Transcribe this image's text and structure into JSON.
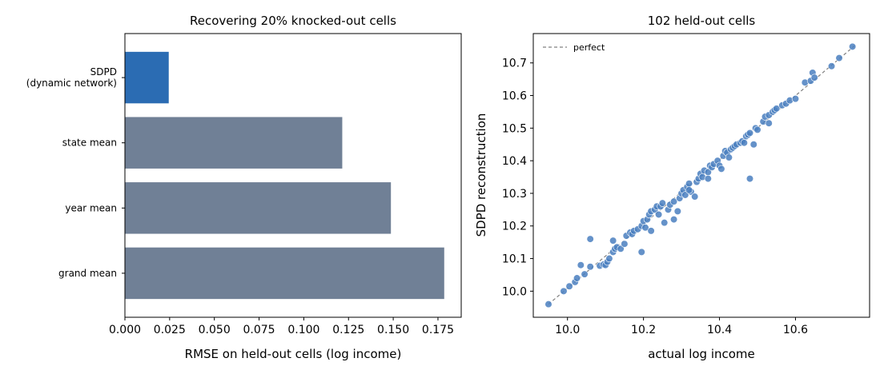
{
  "chart_data": [
    {
      "type": "bar",
      "orientation": "horizontal",
      "title": "Recovering 20% knocked-out cells",
      "xlabel": "RMSE on held-out cells (log income)",
      "ylabel": "",
      "xlim": [
        0,
        0.188
      ],
      "xticks": [
        "0.000",
        "0.025",
        "0.050",
        "0.075",
        "0.100",
        "0.125",
        "0.150",
        "0.175"
      ],
      "categories": [
        [
          "SDPD",
          "(dynamic network)"
        ],
        [
          "state mean"
        ],
        [
          "year mean"
        ],
        [
          "grand mean"
        ]
      ],
      "values": [
        0.0245,
        0.1215,
        0.1487,
        0.1785
      ],
      "colors": [
        "#2b6cb3",
        "#708096",
        "#708096",
        "#708096"
      ],
      "grid": false
    },
    {
      "type": "scatter",
      "title": "102 held-out cells",
      "xlabel": "actual log income",
      "ylabel": "SDPD reconstruction",
      "xlim": [
        9.91,
        10.795
      ],
      "ylim": [
        9.92,
        10.79
      ],
      "xticks": [
        "10.0",
        "10.2",
        "10.4",
        "10.6"
      ],
      "yticks": [
        "10.0",
        "10.1",
        "10.2",
        "10.3",
        "10.4",
        "10.5",
        "10.6",
        "10.7"
      ],
      "legend": {
        "label": "perfect",
        "placement": "top-left"
      },
      "reference_line": {
        "name": "perfect",
        "from": [
          9.95,
          9.96
        ],
        "to": [
          10.755,
          10.752
        ],
        "style": "dashed",
        "color": "#808080"
      },
      "point_color": "#4a7fbf",
      "grid": false,
      "points": [
        [
          9.95,
          9.96
        ],
        [
          9.99,
          10.0
        ],
        [
          10.005,
          10.015
        ],
        [
          10.02,
          10.028
        ],
        [
          10.025,
          10.04
        ],
        [
          10.035,
          10.08
        ],
        [
          10.045,
          10.052
        ],
        [
          10.06,
          10.075
        ],
        [
          10.085,
          10.078
        ],
        [
          10.095,
          10.082
        ],
        [
          10.1,
          10.08
        ],
        [
          10.105,
          10.09
        ],
        [
          10.11,
          10.1
        ],
        [
          10.12,
          10.12
        ],
        [
          10.125,
          10.13
        ],
        [
          10.13,
          10.135
        ],
        [
          10.14,
          10.13
        ],
        [
          10.15,
          10.145
        ],
        [
          10.155,
          10.17
        ],
        [
          10.165,
          10.18
        ],
        [
          10.17,
          10.175
        ],
        [
          10.175,
          10.185
        ],
        [
          10.185,
          10.19
        ],
        [
          10.195,
          10.2
        ],
        [
          10.2,
          10.215
        ],
        [
          10.21,
          10.22
        ],
        [
          10.215,
          10.235
        ],
        [
          10.22,
          10.245
        ],
        [
          10.23,
          10.25
        ],
        [
          10.235,
          10.26
        ],
        [
          10.24,
          10.235
        ],
        [
          10.245,
          10.26
        ],
        [
          10.25,
          10.27
        ],
        [
          10.255,
          10.21
        ],
        [
          10.265,
          10.25
        ],
        [
          10.27,
          10.265
        ],
        [
          10.28,
          10.275
        ],
        [
          10.29,
          10.245
        ],
        [
          10.295,
          10.285
        ],
        [
          10.3,
          10.3
        ],
        [
          10.305,
          10.31
        ],
        [
          10.31,
          10.295
        ],
        [
          10.315,
          10.32
        ],
        [
          10.32,
          10.33
        ],
        [
          10.325,
          10.305
        ],
        [
          10.335,
          10.29
        ],
        [
          10.34,
          10.335
        ],
        [
          10.345,
          10.345
        ],
        [
          10.35,
          10.36
        ],
        [
          10.355,
          10.35
        ],
        [
          10.36,
          10.37
        ],
        [
          10.37,
          10.365
        ],
        [
          10.375,
          10.385
        ],
        [
          10.38,
          10.38
        ],
        [
          10.385,
          10.39
        ],
        [
          10.395,
          10.4
        ],
        [
          10.4,
          10.385
        ],
        [
          10.41,
          10.415
        ],
        [
          10.415,
          10.43
        ],
        [
          10.42,
          10.425
        ],
        [
          10.425,
          10.41
        ],
        [
          10.43,
          10.435
        ],
        [
          10.435,
          10.44
        ],
        [
          10.44,
          10.445
        ],
        [
          10.445,
          10.45
        ],
        [
          10.455,
          10.455
        ],
        [
          10.46,
          10.46
        ],
        [
          10.465,
          10.455
        ],
        [
          10.47,
          10.475
        ],
        [
          10.475,
          10.48
        ],
        [
          10.48,
          10.485
        ],
        [
          10.49,
          10.45
        ],
        [
          10.495,
          10.5
        ],
        [
          10.5,
          10.495
        ],
        [
          10.515,
          10.52
        ],
        [
          10.52,
          10.535
        ],
        [
          10.53,
          10.54
        ],
        [
          10.54,
          10.55
        ],
        [
          10.545,
          10.555
        ],
        [
          10.55,
          10.56
        ],
        [
          10.565,
          10.57
        ],
        [
          10.575,
          10.575
        ],
        [
          10.585,
          10.585
        ],
        [
          10.6,
          10.59
        ],
        [
          10.625,
          10.64
        ],
        [
          10.64,
          10.645
        ],
        [
          10.645,
          10.67
        ],
        [
          10.65,
          10.655
        ],
        [
          10.695,
          10.69
        ],
        [
          10.715,
          10.715
        ],
        [
          10.75,
          10.75
        ],
        [
          10.06,
          10.16
        ],
        [
          10.12,
          10.155
        ],
        [
          10.195,
          10.12
        ],
        [
          10.205,
          10.195
        ],
        [
          10.22,
          10.185
        ],
        [
          10.28,
          10.22
        ],
        [
          10.32,
          10.31
        ],
        [
          10.37,
          10.345
        ],
        [
          10.405,
          10.375
        ],
        [
          10.48,
          10.345
        ],
        [
          10.53,
          10.515
        ]
      ]
    }
  ]
}
